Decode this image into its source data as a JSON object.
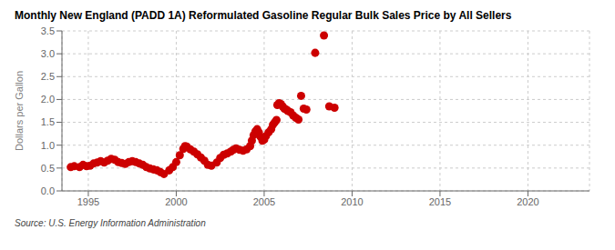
{
  "chart_data": {
    "type": "scatter",
    "title": "Monthly New England (PADD 1A) Reformulated Gasoline Regular Bulk Sales Price by All Sellers",
    "y_label": "Dollars per Gallon",
    "annotations": [
      "Source: U.S. Energy Information Administration"
    ],
    "color": "#CC0000",
    "grid": true,
    "xlim": [
      1993.5,
      2023.5
    ],
    "ylim": [
      0.0,
      3.5
    ],
    "xticks": [
      1995,
      2000,
      2005,
      2010,
      2015,
      2020
    ],
    "yticks": [
      {
        "value": 0,
        "label": "0.0"
      },
      0.5,
      {
        "value": 1,
        "label": "1.0"
      },
      1.5,
      {
        "value": 2,
        "label": "2.0"
      },
      2.5,
      {
        "value": 3,
        "label": "3.0"
      },
      3.5
    ],
    "x": [
      1994.0,
      1994.2,
      1994.5,
      1994.7,
      1994.9,
      1995.1,
      1995.3,
      1995.5,
      1995.7,
      1995.9,
      1996.1,
      1996.3,
      1996.5,
      1996.7,
      1996.9,
      1997.1,
      1997.3,
      1997.5,
      1997.7,
      1997.9,
      1998.1,
      1998.3,
      1998.5,
      1998.7,
      1998.9,
      1999.1,
      1999.3,
      1999.6,
      1999.8,
      2000.0,
      2000.2,
      2000.4,
      2000.5,
      2000.6,
      2000.8,
      2001.0,
      2001.2,
      2001.4,
      2001.6,
      2001.8,
      2002.0,
      2002.3,
      2002.5,
      2002.7,
      2002.9,
      2003.1,
      2003.25,
      2003.4,
      2003.6,
      2003.8,
      2004.0,
      2004.2,
      2004.3,
      2004.4,
      2004.5,
      2004.6,
      2004.7,
      2004.8,
      2004.9,
      2005.0,
      2005.1,
      2005.25,
      2005.4,
      2005.5,
      2005.6,
      2005.7,
      2005.75,
      2005.85,
      2005.95,
      2006.05,
      2006.15,
      2006.25,
      2006.35,
      2006.5,
      2006.65,
      2006.8,
      2006.95,
      2007.1,
      2007.25,
      2007.4,
      2007.9,
      2008.4,
      2008.7,
      2009.0
    ],
    "values": [
      0.52,
      0.54,
      0.52,
      0.57,
      0.54,
      0.55,
      0.6,
      0.62,
      0.65,
      0.62,
      0.66,
      0.7,
      0.68,
      0.63,
      0.61,
      0.59,
      0.63,
      0.65,
      0.63,
      0.6,
      0.57,
      0.52,
      0.49,
      0.47,
      0.45,
      0.41,
      0.37,
      0.45,
      0.52,
      0.63,
      0.78,
      0.92,
      0.98,
      0.97,
      0.91,
      0.86,
      0.8,
      0.73,
      0.66,
      0.57,
      0.55,
      0.62,
      0.72,
      0.79,
      0.82,
      0.86,
      0.9,
      0.93,
      0.9,
      0.88,
      0.91,
      0.98,
      1.1,
      1.22,
      1.3,
      1.35,
      1.28,
      1.18,
      1.1,
      1.12,
      1.2,
      1.28,
      1.35,
      1.45,
      1.5,
      1.55,
      1.88,
      1.92,
      1.9,
      1.85,
      1.8,
      1.78,
      1.75,
      1.72,
      1.65,
      1.6,
      1.56,
      2.08,
      1.8,
      1.78,
      3.02,
      3.4,
      1.85,
      1.82
    ]
  }
}
